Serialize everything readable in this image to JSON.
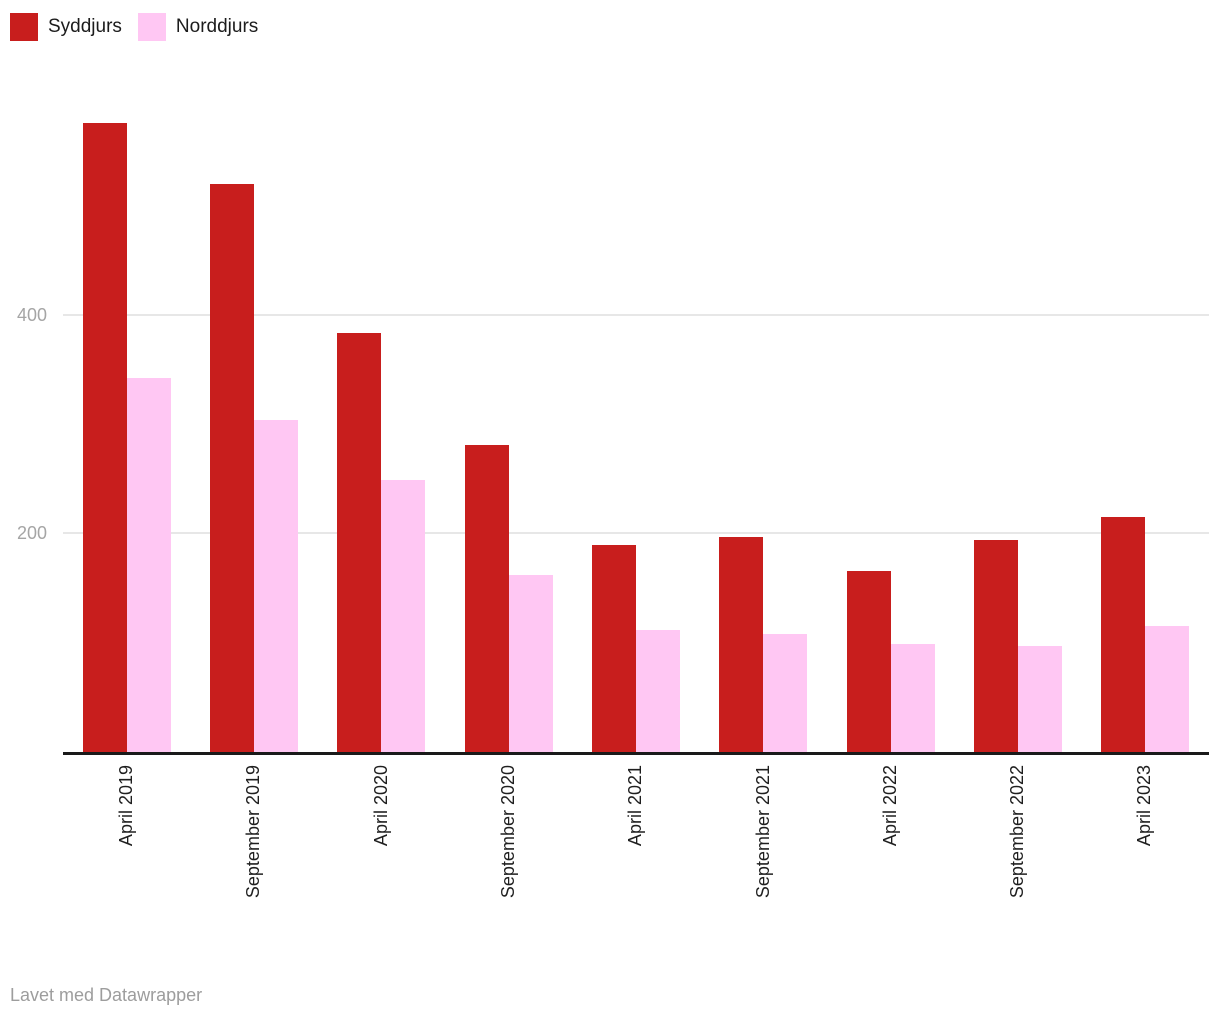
{
  "legend": {
    "items": [
      {
        "label": "Syddjurs",
        "color": "#c81e1d"
      },
      {
        "label": "Norddjurs",
        "color": "#ffc7f3"
      }
    ]
  },
  "chart_data": {
    "type": "bar",
    "categories": [
      "April 2019",
      "September 2019",
      "April 2020",
      "September 2020",
      "April 2021",
      "September 2021",
      "April 2022",
      "September 2022",
      "April 2023"
    ],
    "series": [
      {
        "name": "Syddjurs",
        "color": "#c81e1d",
        "values": [
          575,
          520,
          383,
          281,
          189,
          197,
          166,
          194,
          215
        ]
      },
      {
        "name": "Norddjurs",
        "color": "#ffc7f3",
        "values": [
          342,
          304,
          249,
          162,
          112,
          108,
          99,
          97,
          115
        ]
      }
    ],
    "title": "",
    "xlabel": "",
    "ylabel": "",
    "ylim": [
      0,
      633
    ],
    "yticks": [
      200,
      400
    ],
    "grid": "horizontal",
    "legend_position": "top-left",
    "x_label_rotation": -90
  },
  "footer": {
    "text": "Lavet med Datawrapper"
  },
  "colors": {
    "axis_line": "#1a1a1a",
    "gridline": "#e7e7e7",
    "y_tick_text": "#a5a5a5",
    "x_tick_text": "#1f1f1f",
    "footer_text": "#9d9d9d"
  }
}
